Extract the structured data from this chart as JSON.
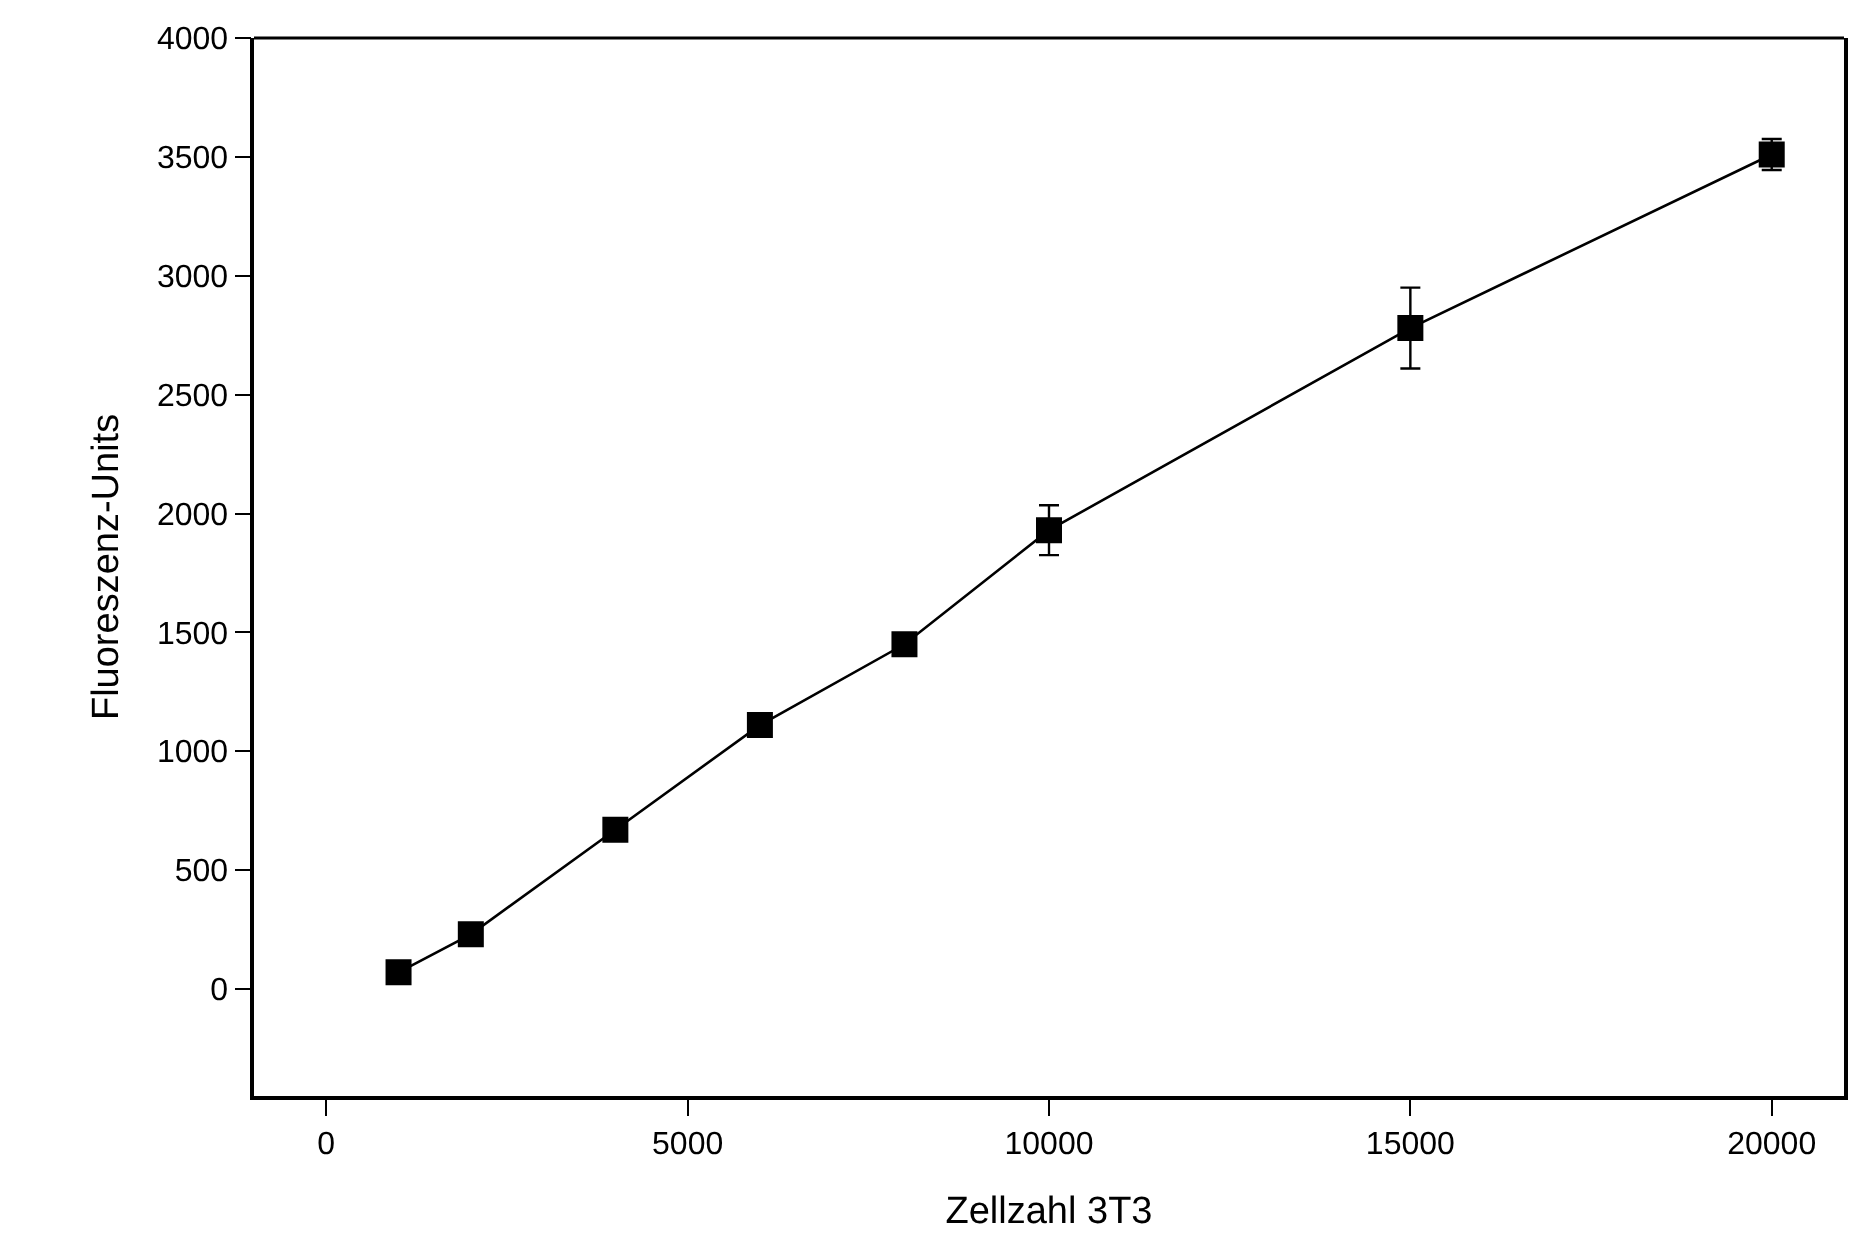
{
  "chart_data": {
    "type": "line",
    "xlabel": "Zellzahl 3T3",
    "ylabel": "Fluoreszenz-Units",
    "x": [
      1000,
      2000,
      4000,
      6000,
      8000,
      10000,
      15000,
      20000
    ],
    "series": [
      {
        "color": "#000000",
        "values": [
          70,
          230,
          670,
          1110,
          1450,
          1930,
          2780,
          3510
        ],
        "errors": [
          null,
          null,
          null,
          null,
          null,
          105,
          170,
          65
        ]
      }
    ],
    "xlim": [
      -1000,
      21000
    ],
    "xticks": [
      0,
      5000,
      10000,
      15000,
      20000
    ],
    "ylim": [
      -450,
      4000
    ],
    "yticks": [
      0,
      500,
      1000,
      1500,
      2000,
      2500,
      3000,
      3500,
      4000
    ],
    "marker": "square",
    "line_style": "solid"
  }
}
